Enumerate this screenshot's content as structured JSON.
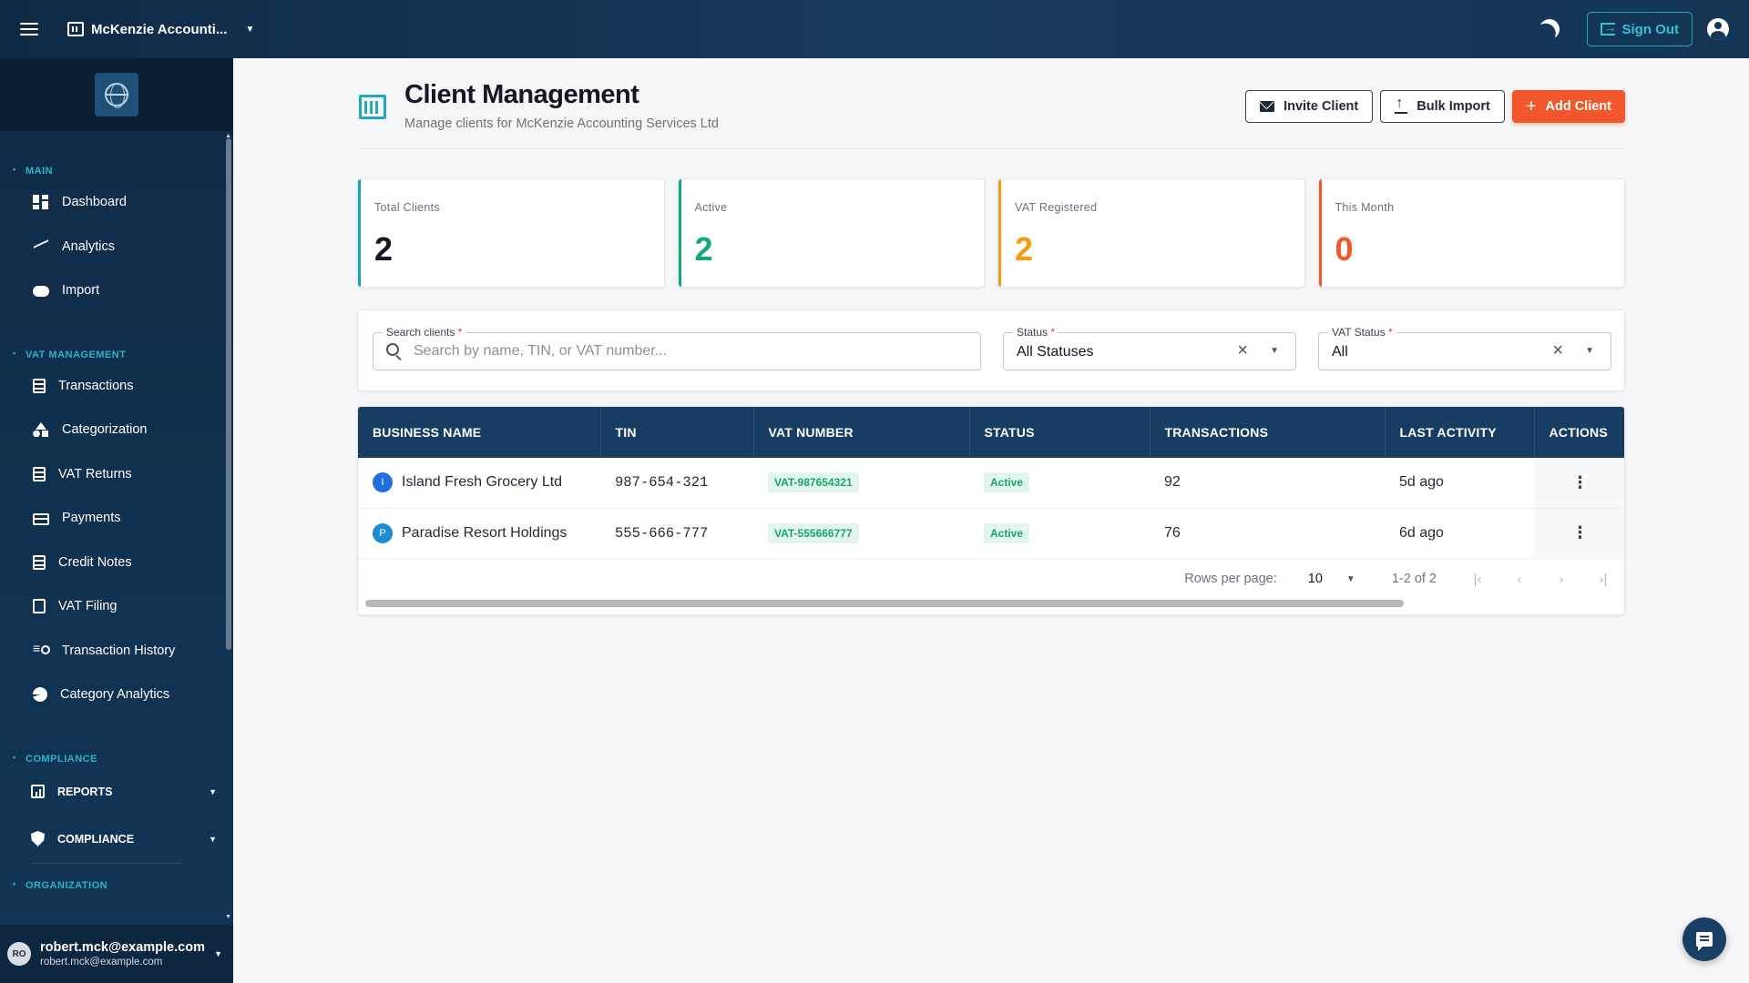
{
  "topbar": {
    "org_name": "McKenzie Accounti...",
    "sign_out_label": "Sign Out"
  },
  "sidebar": {
    "sections": [
      {
        "title": "MAIN",
        "items": [
          {
            "label": "Dashboard",
            "icon": "dashboard-icon"
          },
          {
            "label": "Analytics",
            "icon": "analytics-icon"
          },
          {
            "label": "Import",
            "icon": "cloud-upload-icon"
          }
        ]
      },
      {
        "title": "VAT MANAGEMENT",
        "items": [
          {
            "label": "Transactions",
            "icon": "receipt-icon"
          },
          {
            "label": "Categorization",
            "icon": "category-icon"
          },
          {
            "label": "VAT Returns",
            "icon": "clipboard-icon"
          },
          {
            "label": "Payments",
            "icon": "credit-card-icon"
          },
          {
            "label": "Credit Notes",
            "icon": "document-icon"
          },
          {
            "label": "VAT Filing",
            "icon": "filing-icon"
          },
          {
            "label": "Transaction History",
            "icon": "manage-search-icon"
          },
          {
            "label": "Category Analytics",
            "icon": "pie-chart-icon"
          }
        ]
      },
      {
        "title": "COMPLIANCE",
        "groups": [
          {
            "label": "REPORTS",
            "icon": "report-icon"
          },
          {
            "label": "COMPLIANCE",
            "icon": "shield-icon"
          }
        ]
      },
      {
        "title": "ORGANIZATION"
      }
    ],
    "user": {
      "initials": "RO",
      "name": "robert.mck@example.com",
      "email": "robert.mck@example.com"
    }
  },
  "page": {
    "title": "Client Management",
    "subtitle": "Manage clients for McKenzie Accounting Services Ltd",
    "buttons": {
      "invite": "Invite Client",
      "bulk_import": "Bulk Import",
      "add": "Add Client"
    }
  },
  "stats": [
    {
      "label": "Total Clients",
      "value": "2",
      "color": "#1ba2b7"
    },
    {
      "label": "Active",
      "value": "2",
      "color": "#13a584"
    },
    {
      "label": "VAT Registered",
      "value": "2",
      "color": "#f39c12"
    },
    {
      "label": "This Month",
      "value": "0",
      "color": "#f2572b"
    }
  ],
  "filters": {
    "search_label": "Search clients",
    "search_placeholder": "Search by name, TIN, or VAT number...",
    "search_value": "",
    "status_label": "Status",
    "status_value": "All Statuses",
    "vat_status_label": "VAT Status",
    "vat_status_value": "All"
  },
  "table": {
    "columns": [
      "BUSINESS NAME",
      "TIN",
      "VAT NUMBER",
      "STATUS",
      "TRANSACTIONS",
      "LAST ACTIVITY",
      "ACTIONS"
    ],
    "rows": [
      {
        "initial": "I",
        "name": "Island Fresh Grocery Ltd",
        "tin": "987-654-321",
        "vat": "VAT-987654321",
        "status": "Active",
        "transactions": "92",
        "last_activity": "5d ago"
      },
      {
        "initial": "P",
        "name": "Paradise Resort Holdings",
        "tin": "555-666-777",
        "vat": "VAT-555666777",
        "status": "Active",
        "transactions": "76",
        "last_activity": "6d ago"
      }
    ],
    "pagination": {
      "rows_per_page_label": "Rows per page:",
      "rows_per_page": "10",
      "range": "1-2 of 2"
    }
  },
  "colors": {
    "brand_navy": "#173d63",
    "accent_orange": "#f2572b",
    "accent_teal": "#1ba2b7",
    "status_green": "#19a66b"
  }
}
